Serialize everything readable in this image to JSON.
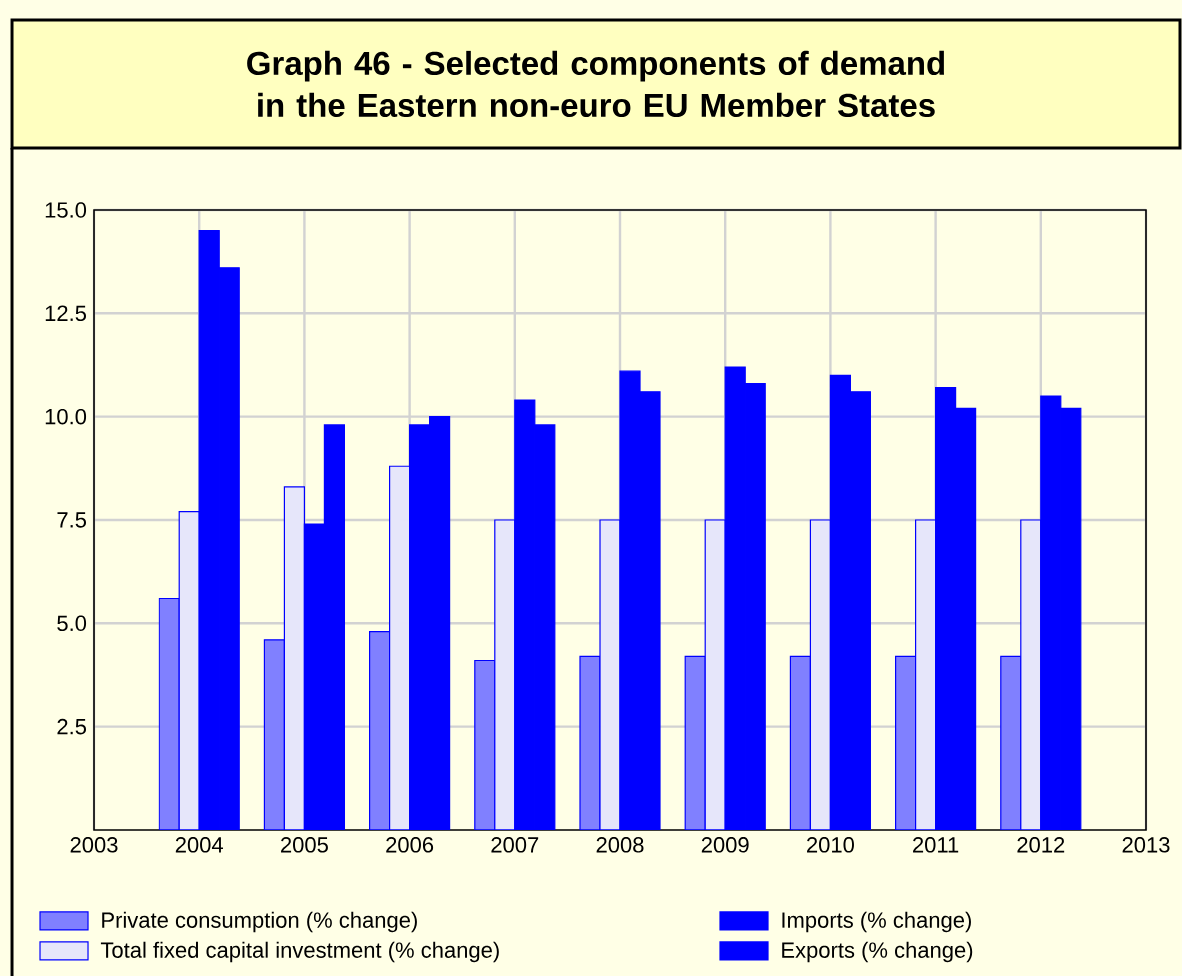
{
  "chart_data": {
    "type": "bar",
    "title": "Graph 46 - Selected components of demand in the Eastern non-euro EU Member States",
    "x": [
      2004,
      2005,
      2006,
      2007,
      2008,
      2009,
      2010,
      2011,
      2012
    ],
    "series": [
      {
        "name": "Private consumption (% change)",
        "color": "#8080ff",
        "values": [
          5.6,
          4.6,
          4.8,
          4.1,
          4.2,
          4.2,
          4.2,
          4.2,
          4.2
        ]
      },
      {
        "name": "Total fixed capital investment (% change)",
        "color": "#e6e6fa",
        "values": [
          7.7,
          8.3,
          8.8,
          7.5,
          7.5,
          7.5,
          7.5,
          7.5,
          7.5
        ]
      },
      {
        "name": "Imports (% change)",
        "color": "#0000ff",
        "values": [
          14.5,
          7.4,
          9.8,
          10.4,
          11.1,
          11.2,
          11.0,
          10.7,
          10.5
        ]
      },
      {
        "name": "Exports (% change)",
        "color": "#0000ff",
        "values": [
          13.6,
          9.8,
          10.0,
          9.8,
          10.6,
          10.8,
          10.6,
          10.2,
          10.2
        ]
      }
    ],
    "xlim": [
      2003,
      2013
    ],
    "xticks": [
      2003,
      2004,
      2005,
      2006,
      2007,
      2008,
      2009,
      2010,
      2011,
      2012,
      2013
    ],
    "ylim": [
      0,
      15
    ],
    "yticks": [
      {
        "value": 2.5,
        "label": "2.5"
      },
      {
        "value": 5,
        "label": "5.0"
      },
      {
        "value": 7.5,
        "label": "7.5"
      },
      {
        "value": 10,
        "label": "10.0"
      },
      {
        "value": 12.5,
        "label": "12.5"
      },
      {
        "value": 15,
        "label": "15.0"
      }
    ],
    "grid": true,
    "legend": "bottom"
  }
}
